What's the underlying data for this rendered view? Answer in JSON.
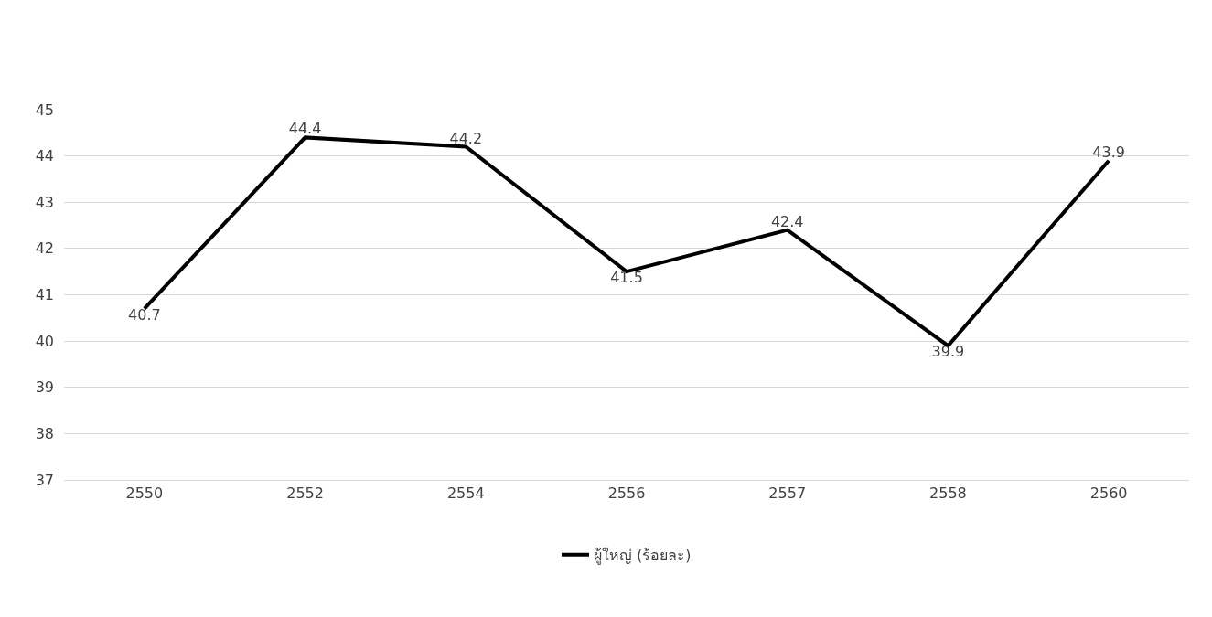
{
  "chart_data": {
    "type": "line",
    "categories": [
      "2550",
      "2552",
      "2554",
      "2556",
      "2557",
      "2558",
      "2560"
    ],
    "series": [
      {
        "name": "ผู้ใหญ่ (ร้อยละ)",
        "color": "#000000",
        "values": [
          40.7,
          44.4,
          44.2,
          41.5,
          42.4,
          39.9,
          43.9
        ]
      }
    ],
    "ylim": [
      37,
      45
    ],
    "yticks": [
      37,
      38,
      39,
      40,
      41,
      42,
      43,
      44,
      45
    ],
    "grid": "y",
    "legend": "bottom",
    "marker": "none",
    "line_style": "solid",
    "data_labels": true
  }
}
